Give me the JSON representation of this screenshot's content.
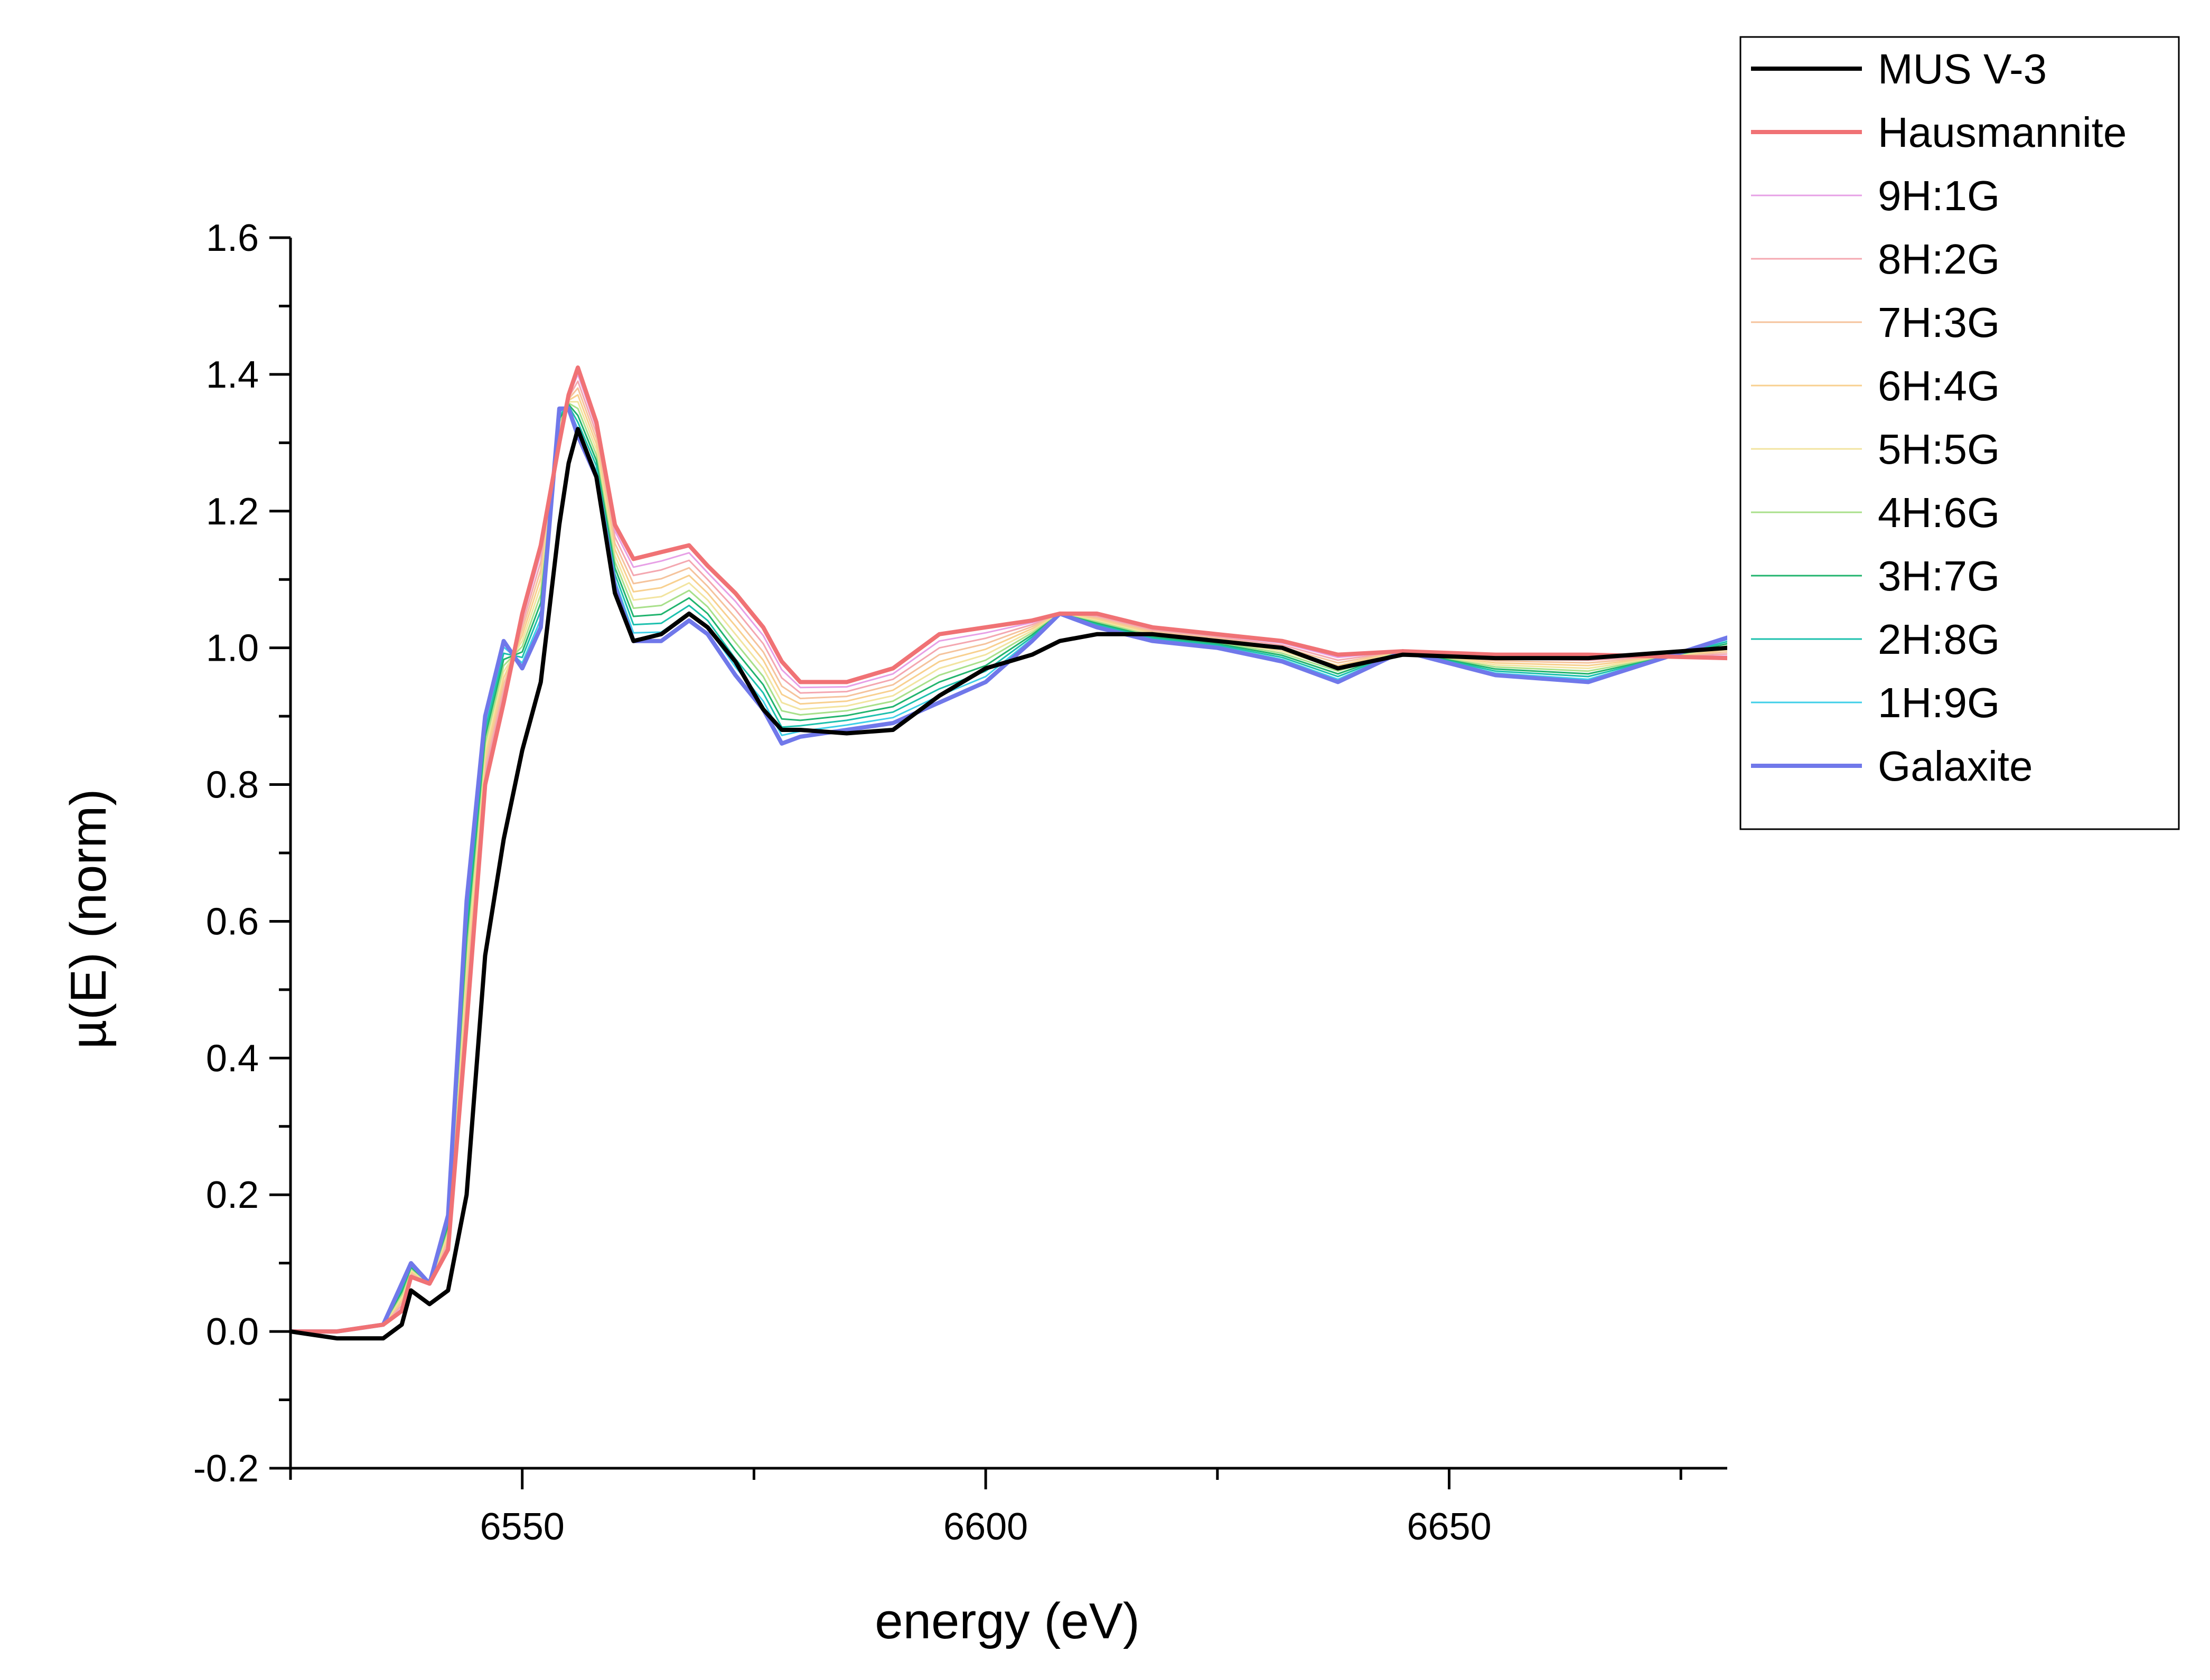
{
  "chart_data": {
    "type": "line",
    "title": "",
    "xlabel": "energy (eV)",
    "ylabel": "µ(E) (norm)",
    "xlim": [
      6525,
      6680
    ],
    "ylim": [
      -0.2,
      1.6
    ],
    "x_ticks": [
      6550,
      6600,
      6650
    ],
    "x_tick_labels": [
      "6550",
      "6600",
      "6650"
    ],
    "y_ticks": [
      -0.2,
      0.0,
      0.2,
      0.4,
      0.6,
      0.8,
      1.0,
      1.2,
      1.4,
      1.6
    ],
    "y_tick_labels": [
      "-0.2",
      "0.0",
      "0.2",
      "0.4",
      "0.6",
      "0.8",
      "1.0",
      "1.2",
      "1.4",
      "1.6"
    ],
    "grid": false,
    "legend_position": "top-right outside",
    "x": [
      6525,
      6530,
      6535,
      6537,
      6538,
      6540,
      6542,
      6544,
      6546,
      6548,
      6550,
      6552,
      6554,
      6555,
      6556,
      6558,
      6560,
      6562,
      6565,
      6568,
      6570,
      6573,
      6576,
      6578,
      6580,
      6585,
      6590,
      6595,
      6600,
      6605,
      6608,
      6612,
      6618,
      6625,
      6632,
      6638,
      6645,
      6655,
      6665,
      6680
    ],
    "series": [
      {
        "name": "MUS V-3",
        "color": "#000000",
        "width": 8,
        "values": [
          0.0,
          -0.01,
          -0.01,
          0.01,
          0.06,
          0.04,
          0.06,
          0.2,
          0.55,
          0.72,
          0.85,
          0.95,
          1.18,
          1.27,
          1.32,
          1.25,
          1.08,
          1.01,
          1.02,
          1.05,
          1.03,
          0.98,
          0.91,
          0.88,
          0.88,
          0.875,
          0.88,
          0.93,
          0.97,
          0.99,
          1.01,
          1.02,
          1.02,
          1.01,
          1.0,
          0.97,
          0.99,
          0.985,
          0.985,
          1.0
        ]
      },
      {
        "name": "Hausmannite",
        "color": "#f07275",
        "width": 8,
        "values": [
          0.0,
          0.0,
          0.01,
          0.03,
          0.08,
          0.07,
          0.12,
          0.45,
          0.8,
          0.92,
          1.05,
          1.15,
          1.3,
          1.37,
          1.41,
          1.33,
          1.18,
          1.13,
          1.14,
          1.15,
          1.12,
          1.08,
          1.03,
          0.98,
          0.95,
          0.95,
          0.97,
          1.02,
          1.03,
          1.04,
          1.05,
          1.05,
          1.03,
          1.02,
          1.01,
          0.99,
          0.995,
          0.99,
          0.99,
          0.985
        ]
      },
      {
        "name": "9H:1G",
        "color": "#e7a0e6",
        "width": 3,
        "values": [
          0.0,
          0.0,
          0.01,
          0.034,
          0.082,
          0.07,
          0.125,
          0.468,
          0.81,
          0.929,
          1.042,
          1.138,
          1.305,
          1.368,
          1.4,
          1.322,
          1.171,
          1.118,
          1.127,
          1.139,
          1.11,
          1.068,
          1.018,
          0.968,
          0.942,
          0.943,
          0.962,
          1.01,
          1.022,
          1.037,
          1.05,
          1.048,
          1.028,
          1.018,
          1.007,
          0.986,
          0.995,
          0.987,
          0.986,
          0.988
        ]
      },
      {
        "name": "8H:2G",
        "color": "#f4a7b0",
        "width": 3,
        "values": [
          0.0,
          0.0,
          0.01,
          0.038,
          0.084,
          0.07,
          0.13,
          0.486,
          0.82,
          0.938,
          1.034,
          1.126,
          1.31,
          1.366,
          1.39,
          1.314,
          1.162,
          1.106,
          1.114,
          1.128,
          1.1,
          1.056,
          1.006,
          0.956,
          0.934,
          0.936,
          0.954,
          1.0,
          1.014,
          1.034,
          1.05,
          1.046,
          1.026,
          1.016,
          1.004,
          0.982,
          0.995,
          0.984,
          0.982,
          0.991
        ]
      },
      {
        "name": "7H:3G",
        "color": "#f5c39c",
        "width": 3,
        "values": [
          0.0,
          0.0,
          0.01,
          0.042,
          0.086,
          0.07,
          0.135,
          0.504,
          0.83,
          0.947,
          1.026,
          1.114,
          1.315,
          1.364,
          1.38,
          1.306,
          1.153,
          1.094,
          1.101,
          1.117,
          1.09,
          1.044,
          0.994,
          0.944,
          0.926,
          0.929,
          0.946,
          0.99,
          1.006,
          1.031,
          1.05,
          1.044,
          1.024,
          1.014,
          1.001,
          0.978,
          0.995,
          0.981,
          0.978,
          0.994
        ]
      },
      {
        "name": "6H:4G",
        "color": "#f8d08f",
        "width": 3,
        "values": [
          0.0,
          0.0,
          0.01,
          0.046,
          0.088,
          0.07,
          0.14,
          0.522,
          0.84,
          0.956,
          1.018,
          1.102,
          1.32,
          1.362,
          1.37,
          1.298,
          1.144,
          1.082,
          1.088,
          1.106,
          1.08,
          1.032,
          0.982,
          0.932,
          0.918,
          0.922,
          0.938,
          0.98,
          0.998,
          1.028,
          1.05,
          1.042,
          1.022,
          1.012,
          0.998,
          0.974,
          0.995,
          0.978,
          0.974,
          0.997
        ]
      },
      {
        "name": "5H:5G",
        "color": "#f2e4a0",
        "width": 3,
        "values": [
          0.0,
          0.0,
          0.01,
          0.05,
          0.09,
          0.07,
          0.145,
          0.54,
          0.85,
          0.965,
          1.01,
          1.09,
          1.325,
          1.36,
          1.36,
          1.29,
          1.135,
          1.07,
          1.075,
          1.095,
          1.07,
          1.02,
          0.97,
          0.92,
          0.91,
          0.915,
          0.93,
          0.97,
          0.99,
          1.025,
          1.05,
          1.04,
          1.02,
          1.01,
          0.995,
          0.97,
          0.995,
          0.975,
          0.97,
          1.0
        ]
      },
      {
        "name": "4H:6G",
        "color": "#a8e08a",
        "width": 3,
        "values": [
          0.0,
          0.0,
          0.01,
          0.054,
          0.092,
          0.07,
          0.15,
          0.558,
          0.86,
          0.974,
          1.002,
          1.078,
          1.33,
          1.358,
          1.35,
          1.282,
          1.126,
          1.058,
          1.062,
          1.084,
          1.06,
          1.008,
          0.958,
          0.908,
          0.902,
          0.908,
          0.922,
          0.96,
          0.982,
          1.022,
          1.05,
          1.038,
          1.018,
          1.008,
          0.992,
          0.966,
          0.995,
          0.972,
          0.966,
          1.003
        ]
      },
      {
        "name": "3H:7G",
        "color": "#21b46e",
        "width": 3,
        "values": [
          0.0,
          0.0,
          0.01,
          0.058,
          0.094,
          0.07,
          0.155,
          0.576,
          0.87,
          0.983,
          0.994,
          1.066,
          1.335,
          1.356,
          1.34,
          1.274,
          1.117,
          1.046,
          1.049,
          1.073,
          1.05,
          0.996,
          0.946,
          0.896,
          0.894,
          0.901,
          0.914,
          0.95,
          0.974,
          1.019,
          1.05,
          1.036,
          1.016,
          1.006,
          0.989,
          0.962,
          0.995,
          0.969,
          0.962,
          1.006
        ]
      },
      {
        "name": "2H:8G",
        "color": "#1cc0ad",
        "width": 3,
        "values": [
          0.0,
          0.0,
          0.01,
          0.062,
          0.096,
          0.07,
          0.16,
          0.594,
          0.88,
          0.992,
          0.986,
          1.054,
          1.34,
          1.354,
          1.33,
          1.266,
          1.108,
          1.034,
          1.036,
          1.062,
          1.04,
          0.984,
          0.934,
          0.884,
          0.886,
          0.894,
          0.906,
          0.94,
          0.966,
          1.016,
          1.05,
          1.034,
          1.014,
          1.004,
          0.986,
          0.958,
          0.995,
          0.966,
          0.958,
          1.009
        ]
      },
      {
        "name": "1H:9G",
        "color": "#3fcfe8",
        "width": 3,
        "values": [
          0.0,
          0.0,
          0.01,
          0.066,
          0.098,
          0.07,
          0.165,
          0.612,
          0.89,
          1.001,
          0.978,
          1.042,
          1.345,
          1.352,
          1.32,
          1.258,
          1.099,
          1.022,
          1.023,
          1.051,
          1.03,
          0.972,
          0.922,
          0.872,
          0.878,
          0.887,
          0.898,
          0.93,
          0.958,
          1.013,
          1.05,
          1.032,
          1.012,
          1.002,
          0.983,
          0.954,
          0.995,
          0.963,
          0.954,
          1.012
        ]
      },
      {
        "name": "Galaxite",
        "color": "#7078ea",
        "width": 8,
        "values": [
          0.0,
          0.0,
          0.01,
          0.07,
          0.1,
          0.07,
          0.17,
          0.63,
          0.9,
          1.01,
          0.97,
          1.03,
          1.35,
          1.35,
          1.31,
          1.25,
          1.09,
          1.01,
          1.01,
          1.04,
          1.02,
          0.96,
          0.91,
          0.86,
          0.87,
          0.88,
          0.89,
          0.92,
          0.95,
          1.01,
          1.05,
          1.03,
          1.01,
          1.0,
          0.98,
          0.95,
          0.995,
          0.96,
          0.95,
          1.015
        ]
      }
    ]
  }
}
